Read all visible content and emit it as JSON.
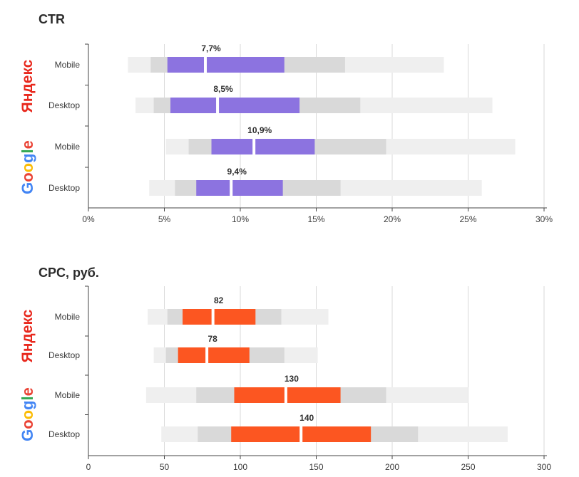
{
  "chart_data": [
    {
      "type": "boxplot",
      "title": "CTR",
      "x_ticks": [
        "0%",
        "5%",
        "10%",
        "15%",
        "20%",
        "25%",
        "30%"
      ],
      "xlim": [
        0,
        30
      ],
      "grid": true,
      "groups": [
        "Яндекс",
        "Google"
      ],
      "rows": [
        {
          "group": "Яндекс",
          "label": "Mobile",
          "min": 2.6,
          "p10": 4.1,
          "q1": 5.2,
          "median": 7.7,
          "q3": 12.9,
          "p90": 16.9,
          "max": 23.4,
          "median_label": "7,7%"
        },
        {
          "group": "Яндекс",
          "label": "Desktop",
          "min": 3.1,
          "p10": 4.3,
          "q1": 5.4,
          "median": 8.5,
          "q3": 13.9,
          "p90": 17.9,
          "max": 26.6,
          "median_label": "8,5%"
        },
        {
          "group": "Google",
          "label": "Mobile",
          "min": 5.1,
          "p10": 6.6,
          "q1": 8.1,
          "median": 10.9,
          "q3": 14.9,
          "p90": 19.6,
          "max": 28.1,
          "median_label": "10,9%"
        },
        {
          "group": "Google",
          "label": "Desktop",
          "min": 4.0,
          "p10": 5.7,
          "q1": 7.1,
          "median": 9.4,
          "q3": 12.8,
          "p90": 16.6,
          "max": 25.9,
          "median_label": "9,4%"
        }
      ],
      "colors": {
        "box": "#8c73e0",
        "inner": "#d9d9d9",
        "outer": "#efefef"
      }
    },
    {
      "type": "boxplot",
      "title": "CPC, руб.",
      "x_ticks": [
        "0",
        "50",
        "100",
        "150",
        "200",
        "250",
        "300"
      ],
      "xlim": [
        0,
        300
      ],
      "grid": true,
      "groups": [
        "Яндекс",
        "Google"
      ],
      "rows": [
        {
          "group": "Яндекс",
          "label": "Mobile",
          "min": 39,
          "p10": 52,
          "q1": 62,
          "median": 82,
          "q3": 110,
          "p90": 127,
          "max": 158,
          "median_label": "82"
        },
        {
          "group": "Яндекс",
          "label": "Desktop",
          "min": 43,
          "p10": 51,
          "q1": 59,
          "median": 78,
          "q3": 106,
          "p90": 129,
          "max": 151,
          "median_label": "78"
        },
        {
          "group": "Google",
          "label": "Mobile",
          "min": 38,
          "p10": 71,
          "q1": 96,
          "median": 130,
          "q3": 166,
          "p90": 196,
          "max": 250,
          "median_label": "130"
        },
        {
          "group": "Google",
          "label": "Desktop",
          "min": 48,
          "p10": 72,
          "q1": 94,
          "median": 140,
          "q3": 186,
          "p90": 217,
          "max": 276,
          "median_label": "140"
        }
      ],
      "colors": {
        "box": "#fc5621",
        "inner": "#d9d9d9",
        "outer": "#efefef"
      }
    }
  ],
  "brands": {
    "yandex": {
      "text": "Яндекс",
      "color": "#e8281d"
    },
    "google": {
      "text": "Google",
      "letter_colors": [
        "#4285f4",
        "#ea4335",
        "#fbbc05",
        "#4285f4",
        "#34a853",
        "#ea4335"
      ]
    }
  }
}
